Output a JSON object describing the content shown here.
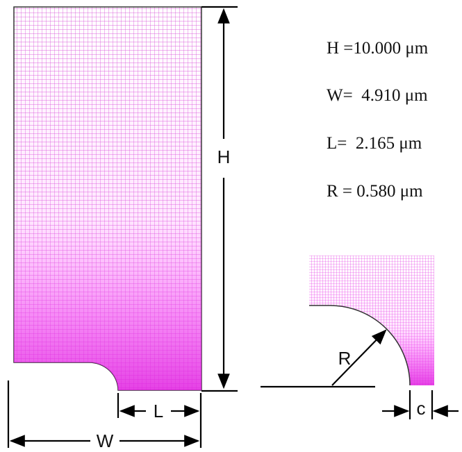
{
  "parameters": [
    "H =10.000 μm",
    "W=  4.910 μm",
    "L=  2.165 μm",
    "R = 0.580 μm"
  ],
  "labels": {
    "height": "H",
    "width": "W",
    "length": "L",
    "radius": "R",
    "clearance": "c"
  }
}
